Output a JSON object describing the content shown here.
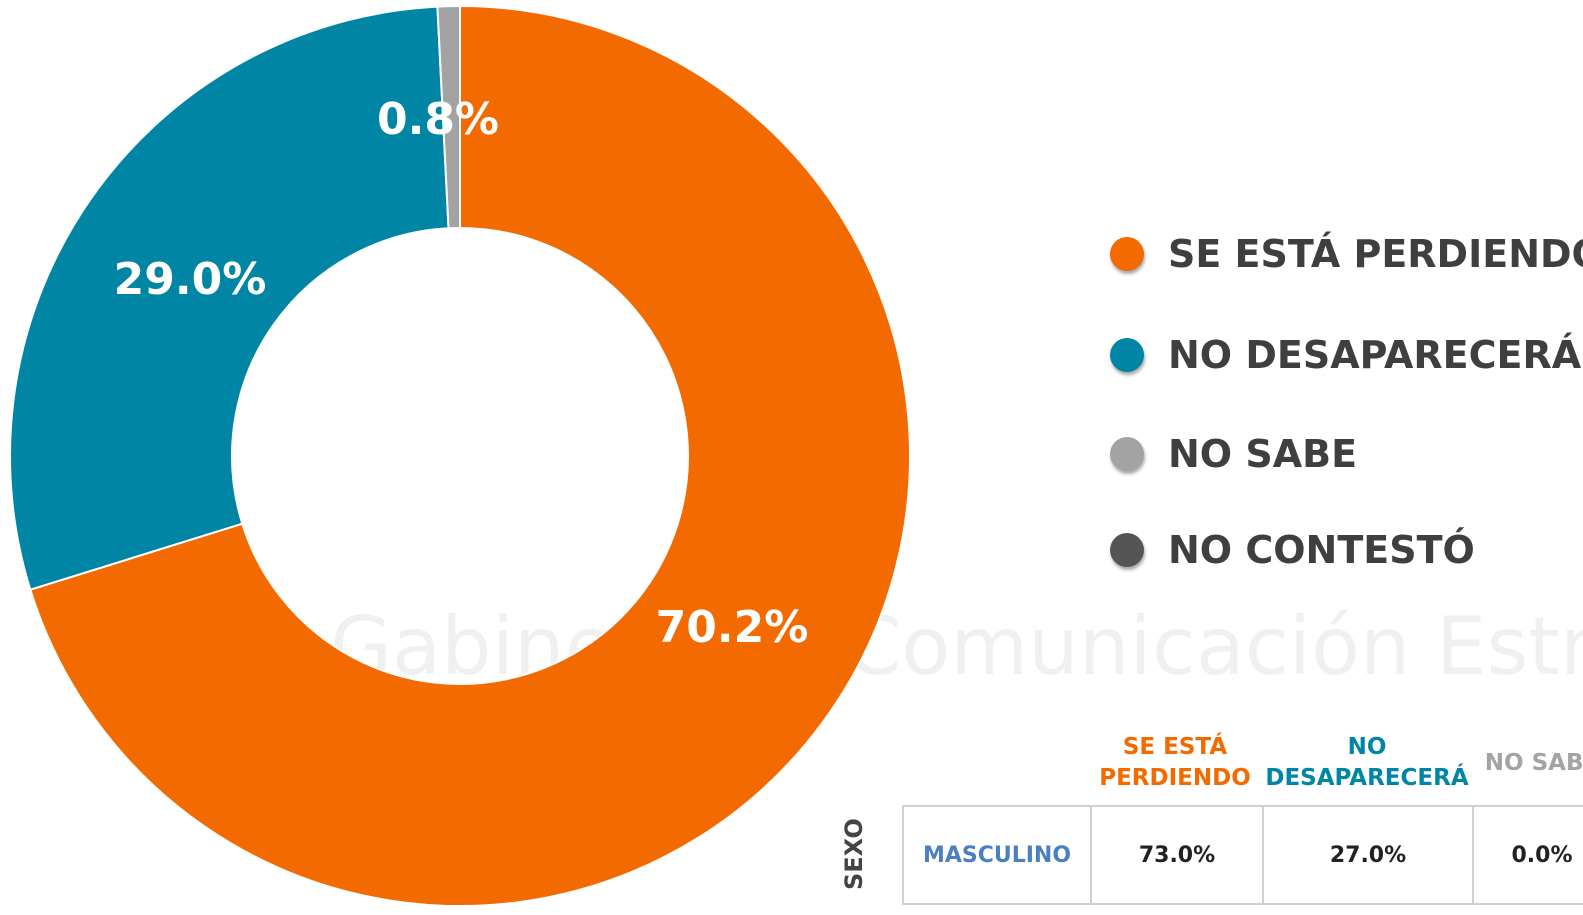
{
  "chart_data": {
    "type": "donut",
    "categories": [
      "SE ESTÁ PERDIENDO",
      "NO DESAPARECERÁ",
      "NO SABE",
      "NO CONTESTÓ"
    ],
    "values": [
      70.2,
      29.0,
      0.8,
      0
    ],
    "value_labels": [
      "70.2%",
      "29.0%",
      "0.8%",
      null
    ],
    "colors": [
      "#f26a00",
      "#0085a5",
      "#a3a3a3",
      "#555555"
    ],
    "legend": "right"
  },
  "watermark": "Gabinete de Comunicación Estratégica",
  "table": {
    "side_label": "SEXO",
    "headers": [
      "SE ESTÁ PERDIENDO",
      "NO DESAPARECERÁ",
      "NO SABE"
    ],
    "rows": [
      [
        "MASCULINO",
        "73.0%",
        "27.0%",
        "0.0%"
      ]
    ]
  }
}
